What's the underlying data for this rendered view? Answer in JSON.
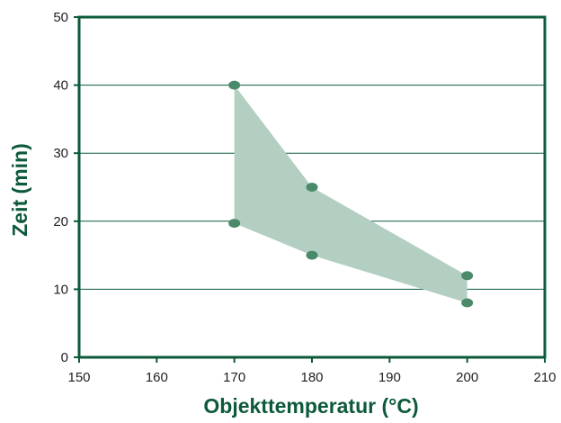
{
  "chart_data": {
    "type": "area",
    "title": "",
    "xlabel": "Objekttemperatur (°C)",
    "ylabel": "Zeit (min)",
    "xlim": [
      150,
      210
    ],
    "ylim": [
      0,
      50
    ],
    "xticks": [
      150,
      160,
      170,
      180,
      190,
      200,
      210
    ],
    "yticks": [
      0,
      10,
      20,
      30,
      40,
      50
    ],
    "grid": "horizontal",
    "legend": "none",
    "series": [
      {
        "points": [
          {
            "x": 170,
            "y": 40
          },
          {
            "x": 180,
            "y": 25
          },
          {
            "x": 200,
            "y": 12
          },
          {
            "x": 200,
            "y": 8
          },
          {
            "x": 180,
            "y": 15
          },
          {
            "x": 170,
            "y": 19.7
          }
        ],
        "upper_bound": [
          {
            "x": 170,
            "y": 40
          },
          {
            "x": 180,
            "y": 25
          },
          {
            "x": 200,
            "y": 12
          }
        ],
        "lower_bound": [
          {
            "x": 170,
            "y": 19.7
          },
          {
            "x": 180,
            "y": 15
          },
          {
            "x": 200,
            "y": 8
          }
        ]
      }
    ],
    "colors": {
      "axis": "#0d5a3a",
      "grid": "#0d5a3a",
      "fill": "#b3cfc2",
      "marker": "#4a8a6a",
      "title": "#0d5a3a",
      "tick": "#222222"
    }
  }
}
